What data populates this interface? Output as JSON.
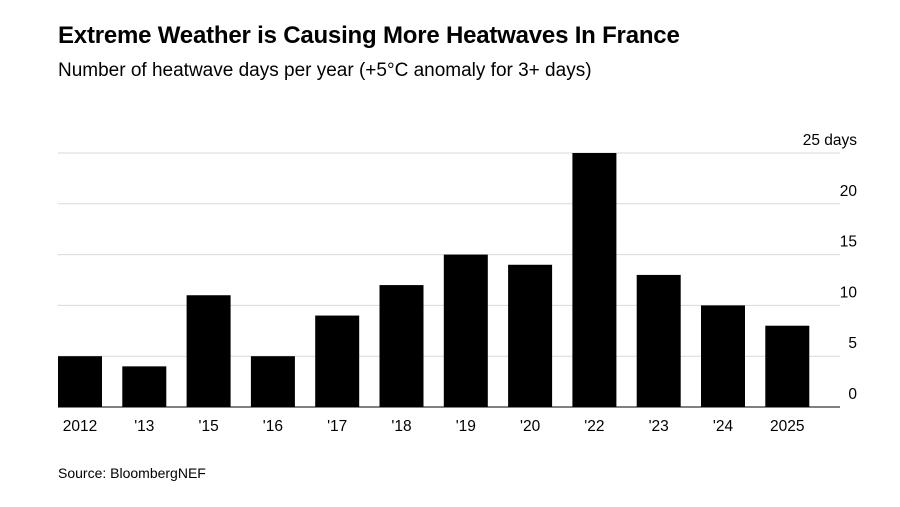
{
  "title": "Extreme Weather is Causing More Heatwaves In France",
  "subtitle": "Number of heatwave days per year (+5°C anomaly for 3+ days)",
  "source": "Source: BloombergNEF",
  "chart_data": {
    "type": "bar",
    "title": "Extreme Weather is Causing More Heatwaves In France",
    "subtitle": "Number of heatwave days per year (+5°C anomaly for 3+ days)",
    "categories": [
      "2012",
      "'13",
      "'15",
      "'16",
      "'17",
      "'18",
      "'19",
      "'20",
      "'22",
      "'23",
      "'24",
      "2025"
    ],
    "values": [
      5,
      4,
      11,
      5,
      9,
      12,
      15,
      14,
      25,
      13,
      10,
      8
    ],
    "ylim": [
      0,
      25
    ],
    "yticks": [
      0,
      5,
      10,
      15,
      20,
      25
    ],
    "ytick_labels": [
      "0",
      "5",
      "10",
      "15",
      "20",
      "25 days"
    ],
    "y_axis_position": "right",
    "grid": true,
    "bar_color": "#000000",
    "grid_color": "#d9d9d9",
    "source": "Source: BloombergNEF"
  }
}
